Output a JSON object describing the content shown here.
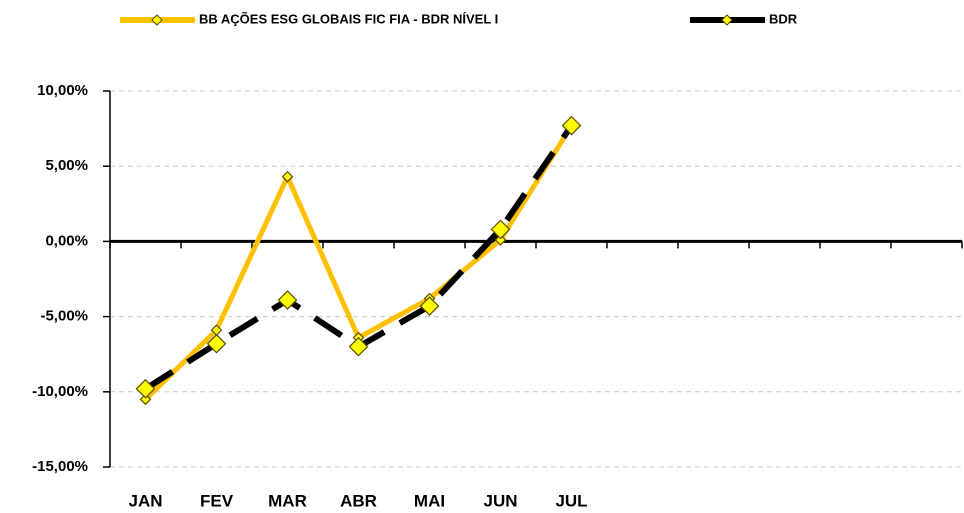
{
  "chart_data": {
    "type": "line",
    "categories": [
      "JAN",
      "FEV",
      "MAR",
      "ABR",
      "MAI",
      "JUN",
      "JUL",
      null,
      null,
      null,
      null,
      null
    ],
    "series": [
      {
        "name": "BB AÇÕES ESG GLOBAIS FIC FIA - BDR NÍVEL I",
        "color": "#FFC000",
        "marker_color": "#FFFF00",
        "line_style": "solid",
        "values": [
          -10.5,
          -5.9,
          4.3,
          -6.4,
          -3.8,
          0.1,
          7.7,
          null,
          null,
          null,
          null,
          null
        ]
      },
      {
        "name": "BDR",
        "color": "#000000",
        "marker_color": "#FFFF00",
        "line_style": "dashed",
        "values": [
          -9.8,
          -6.8,
          -3.9,
          -7.0,
          -4.3,
          0.8,
          7.7,
          null,
          null,
          null,
          null,
          null
        ]
      }
    ],
    "ylim": [
      -15,
      10
    ],
    "yticks": [
      {
        "value": 10,
        "label": "10,00%"
      },
      {
        "value": 5,
        "label": "5,00%"
      },
      {
        "value": 0,
        "label": "0,00%"
      },
      {
        "value": -5,
        "label": "-5,00%"
      },
      {
        "value": -10,
        "label": "-10,00%"
      },
      {
        "value": -15,
        "label": "-15,00%"
      }
    ],
    "grid": true,
    "legend": "top"
  }
}
